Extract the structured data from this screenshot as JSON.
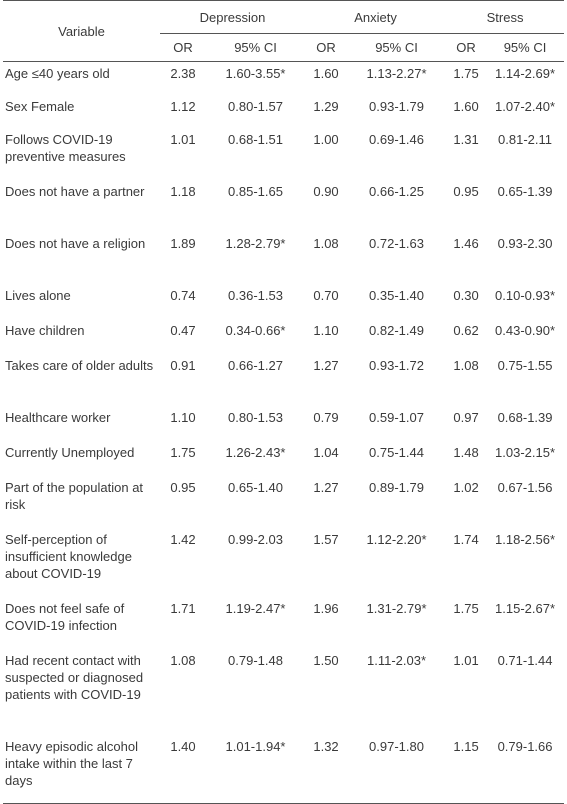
{
  "header": {
    "variable": "Variable",
    "groups": [
      "Depression",
      "Anxiety",
      "Stress"
    ],
    "or": "OR",
    "ci": "95% CI"
  },
  "rows": [
    {
      "label": "Age ≤40 years old",
      "d_or": "2.38",
      "d_ci": "1.60-3.55*",
      "a_or": "1.60",
      "a_ci": "1.13-2.27*",
      "s_or": "1.75",
      "s_ci": "1.14-2.69*"
    },
    {
      "label": "Sex Female",
      "d_or": "1.12",
      "d_ci": "0.80-1.57",
      "a_or": "1.29",
      "a_ci": "0.93-1.79",
      "s_or": "1.60",
      "s_ci": "1.07-2.40*"
    },
    {
      "label": "Follows COVID-19 preventive measures",
      "d_or": "1.01",
      "d_ci": "0.68-1.51",
      "a_or": "1.00",
      "a_ci": "0.69-1.46",
      "s_or": "1.31",
      "s_ci": "0.81-2.11"
    },
    {
      "label": "Does not have a partner",
      "d_or": "1.18",
      "d_ci": "0.85-1.65",
      "a_or": "0.90",
      "a_ci": "0.66-1.25",
      "s_or": "0.95",
      "s_ci": "0.65-1.39"
    },
    {
      "label": "Does not have a religion",
      "d_or": "1.89",
      "d_ci": "1.28-2.79*",
      "a_or": "1.08",
      "a_ci": "0.72-1.63",
      "s_or": "1.46",
      "s_ci": "0.93-2.30"
    },
    {
      "label": "Lives alone",
      "d_or": "0.74",
      "d_ci": "0.36-1.53",
      "a_or": "0.70",
      "a_ci": "0.35-1.40",
      "s_or": "0.30",
      "s_ci": "0.10-0.93*"
    },
    {
      "label": "Have children",
      "d_or": "0.47",
      "d_ci": "0.34-0.66*",
      "a_or": "1.10",
      "a_ci": "0.82-1.49",
      "s_or": "0.62",
      "s_ci": "0.43-0.90*"
    },
    {
      "label": "Takes care of older adults",
      "d_or": "0.91",
      "d_ci": "0.66-1.27",
      "a_or": "1.27",
      "a_ci": "0.93-1.72",
      "s_or": "1.08",
      "s_ci": "0.75-1.55"
    },
    {
      "label": "Healthcare worker",
      "d_or": "1.10",
      "d_ci": "0.80-1.53",
      "a_or": "0.79",
      "a_ci": "0.59-1.07",
      "s_or": "0.97",
      "s_ci": "0.68-1.39"
    },
    {
      "label": "Currently Unemployed",
      "d_or": "1.75",
      "d_ci": "1.26-2.43*",
      "a_or": "1.04",
      "a_ci": "0.75-1.44",
      "s_or": "1.48",
      "s_ci": "1.03-2.15*"
    },
    {
      "label": "Part of the population at risk",
      "d_or": "0.95",
      "d_ci": "0.65-1.40",
      "a_or": "1.27",
      "a_ci": "0.89-1.79",
      "s_or": "1.02",
      "s_ci": "0.67-1.56"
    },
    {
      "label": "Self-perception of insufficient knowledge about COVID-19",
      "d_or": "1.42",
      "d_ci": "0.99-2.03",
      "a_or": "1.57",
      "a_ci": "1.12-2.20*",
      "s_or": "1.74",
      "s_ci": "1.18-2.56*"
    },
    {
      "label": "Does not feel safe of COVID-19 infection",
      "d_or": "1.71",
      "d_ci": "1.19-2.47*",
      "a_or": "1.96",
      "a_ci": "1.31-2.79*",
      "s_or": "1.75",
      "s_ci": "1.15-2.67*"
    },
    {
      "label": "Had recent contact with suspected or diagnosed patients with COVID-19",
      "d_or": "1.08",
      "d_ci": "0.79-1.48",
      "a_or": "1.50",
      "a_ci": "1.11-2.03*",
      "s_or": "1.01",
      "s_ci": "0.71-1.44"
    },
    {
      "label": "Heavy episodic alcohol intake within the last 7 days",
      "d_or": "1.40",
      "d_ci": "1.01-1.94*",
      "a_or": "1.32",
      "a_ci": "0.97-1.80",
      "s_or": "1.15",
      "s_ci": "0.79-1.66"
    }
  ]
}
